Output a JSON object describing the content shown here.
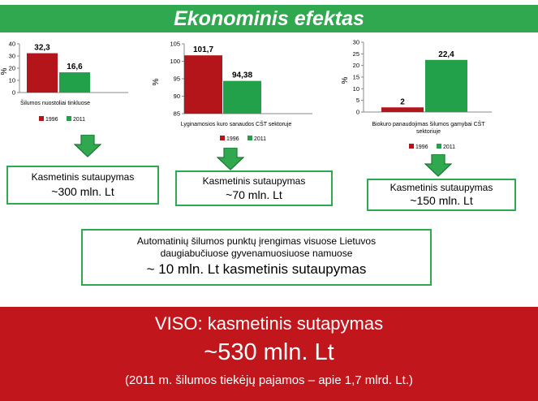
{
  "slide": {
    "title": "Ekonominis efektas",
    "box1": {
      "line1": "Kasmetinis sutaupymas",
      "line2": "~300 mln. Lt"
    },
    "box2": {
      "line1": "Kasmetinis sutaupymas",
      "line2": "~70 mln. Lt"
    },
    "box3": {
      "line1": "Kasmetinis sutaupymas",
      "line2": "~150 mln. Lt"
    },
    "middle": {
      "line1": "Automatinių šilumos punktų įrengimas visuose Lietuvos",
      "line2": "daugiabučiuose  gyvenamuosiuose  namuose",
      "line3": "~ 10 mln. Lt kasmetinis sutaupymas"
    },
    "bottom": {
      "line1": "VISO: kasmetinis sutapymas",
      "line2": "~530 mln. Lt",
      "line3": "(2011 m. šilumos tiekėjų pajamos – apie 1,7 mlrd. Lt.)"
    }
  },
  "colors": {
    "series_1996": "#b3151b",
    "series_2011": "#22a14a",
    "accent_green": "#2fa84f",
    "bottom_red": "#c0161c"
  },
  "chart_data": [
    {
      "type": "bar",
      "xlabel": "Šilumos nuostoliai tinkluose",
      "ylabel": "%",
      "ylim": [
        0,
        40
      ],
      "yticks": [
        "0",
        "10",
        "20",
        "30",
        "40"
      ],
      "series": [
        {
          "name": "1996",
          "values": [
            32.3
          ],
          "label": "32,3"
        },
        {
          "name": "2011",
          "values": [
            16.6
          ],
          "label": "16,6"
        }
      ]
    },
    {
      "type": "bar",
      "xlabel": "Lyginamosios kuro sanaudos CŠT sektoruje",
      "ylabel": "%",
      "ylim": [
        85,
        105
      ],
      "yticks": [
        "85",
        "90",
        "95",
        "100",
        "105"
      ],
      "series": [
        {
          "name": "1996",
          "values": [
            101.7
          ],
          "label": "101,7"
        },
        {
          "name": "2011",
          "values": [
            94.38
          ],
          "label": "94,38"
        }
      ]
    },
    {
      "type": "bar",
      "xlabel": "Biokuro panaudojimas šilumos gamybai CŠT sektoriuje",
      "ylabel": "%",
      "ylim": [
        0,
        30
      ],
      "yticks": [
        "0",
        "5",
        "10",
        "15",
        "20",
        "25",
        "30"
      ],
      "series": [
        {
          "name": "1996",
          "values": [
            2
          ],
          "label": "2"
        },
        {
          "name": "2011",
          "values": [
            22.4
          ],
          "label": "22,4"
        }
      ]
    }
  ]
}
